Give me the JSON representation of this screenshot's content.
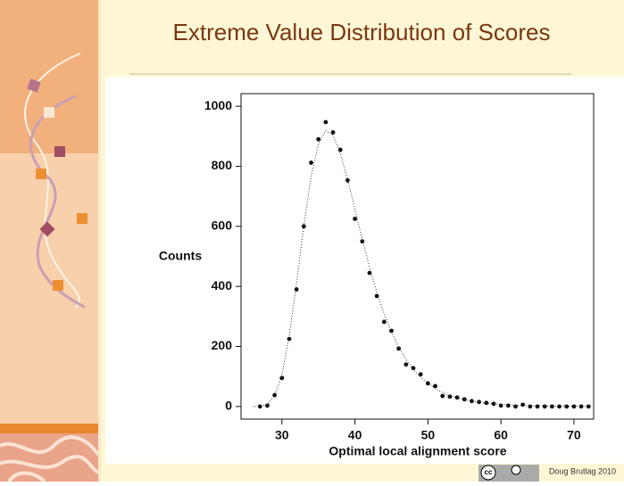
{
  "chart_data": {
    "type": "scatter",
    "title": "Extreme Value Distribution of Scores",
    "xlabel": "Optimal local alignment score",
    "ylabel": "Counts",
    "xlim": [
      24.4,
      72.7
    ],
    "ylim": [
      -42,
      1042
    ],
    "xticks": [
      30,
      40,
      50,
      60,
      70
    ],
    "yticks": [
      0,
      200,
      400,
      600,
      800,
      1000
    ],
    "box": true,
    "series": [
      {
        "type": "scatter",
        "color": "#111111",
        "x": [
          27,
          28,
          29,
          30,
          31,
          32,
          33,
          34,
          35,
          36,
          37,
          38,
          39,
          40,
          41,
          42,
          43,
          44,
          45,
          46,
          47,
          48,
          49,
          50,
          51,
          52,
          53,
          54,
          55,
          56,
          57,
          58,
          59,
          60,
          61,
          62,
          63,
          64,
          65,
          66,
          67,
          68,
          69,
          70,
          71,
          72
        ],
        "values": [
          0,
          3,
          38,
          95,
          225,
          390,
          600,
          812,
          890,
          947,
          913,
          855,
          753,
          625,
          550,
          445,
          368,
          282,
          252,
          193,
          140,
          128,
          107,
          77,
          68,
          35,
          33,
          30,
          24,
          18,
          15,
          12,
          9,
          3,
          3,
          0,
          6,
          0,
          0,
          0,
          0,
          0,
          0,
          0,
          0,
          0
        ]
      },
      {
        "type": "line",
        "style": "dotted",
        "color": "#333333",
        "x": [
          26,
          27,
          28,
          29,
          30,
          31,
          32,
          33,
          34,
          35,
          36,
          37,
          38,
          39,
          40,
          41,
          42,
          43,
          44,
          45,
          46,
          47,
          48,
          49,
          50,
          51,
          52,
          53,
          54,
          55,
          56,
          58,
          60,
          62,
          64,
          66,
          68,
          70,
          72
        ],
        "values": [
          0,
          1,
          8,
          36,
          106,
          234,
          409,
          601,
          766,
          875,
          919,
          903,
          843,
          755,
          657,
          557,
          464,
          381,
          309,
          248,
          198,
          157,
          124,
          98,
          77,
          60,
          47,
          37,
          29,
          23,
          18,
          11,
          7,
          4,
          2,
          2,
          1,
          1,
          0
        ]
      }
    ]
  },
  "footer": {
    "author": "Doug Brutlag 2010",
    "license": "cc"
  }
}
